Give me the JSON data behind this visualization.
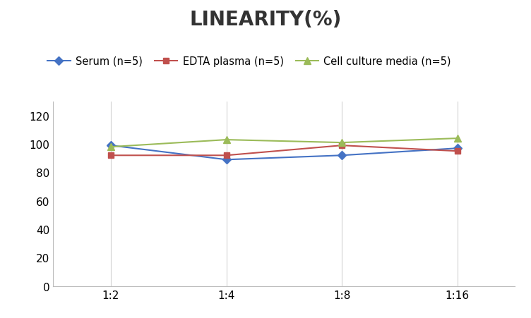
{
  "title": "LINEARITY(%)",
  "x_labels": [
    "1:2",
    "1:4",
    "1:8",
    "1:16"
  ],
  "x_positions": [
    0,
    1,
    2,
    3
  ],
  "series": [
    {
      "label": "Serum (n=5)",
      "values": [
        99,
        89,
        92,
        97
      ],
      "color": "#4472C4",
      "marker": "D",
      "marker_size": 6
    },
    {
      "label": "EDTA plasma (n=5)",
      "values": [
        92,
        92,
        99,
        95
      ],
      "color": "#C0504D",
      "marker": "s",
      "marker_size": 6
    },
    {
      "label": "Cell culture media (n=5)",
      "values": [
        98,
        103,
        101,
        104
      ],
      "color": "#9BBB59",
      "marker": "^",
      "marker_size": 7
    }
  ],
  "ylim": [
    0,
    130
  ],
  "yticks": [
    0,
    20,
    40,
    60,
    80,
    100,
    120
  ],
  "grid_color": "#D3D3D3",
  "background_color": "#FFFFFF",
  "title_fontsize": 20,
  "title_fontweight": "bold",
  "legend_fontsize": 10.5,
  "tick_fontsize": 11,
  "linewidth": 1.5
}
